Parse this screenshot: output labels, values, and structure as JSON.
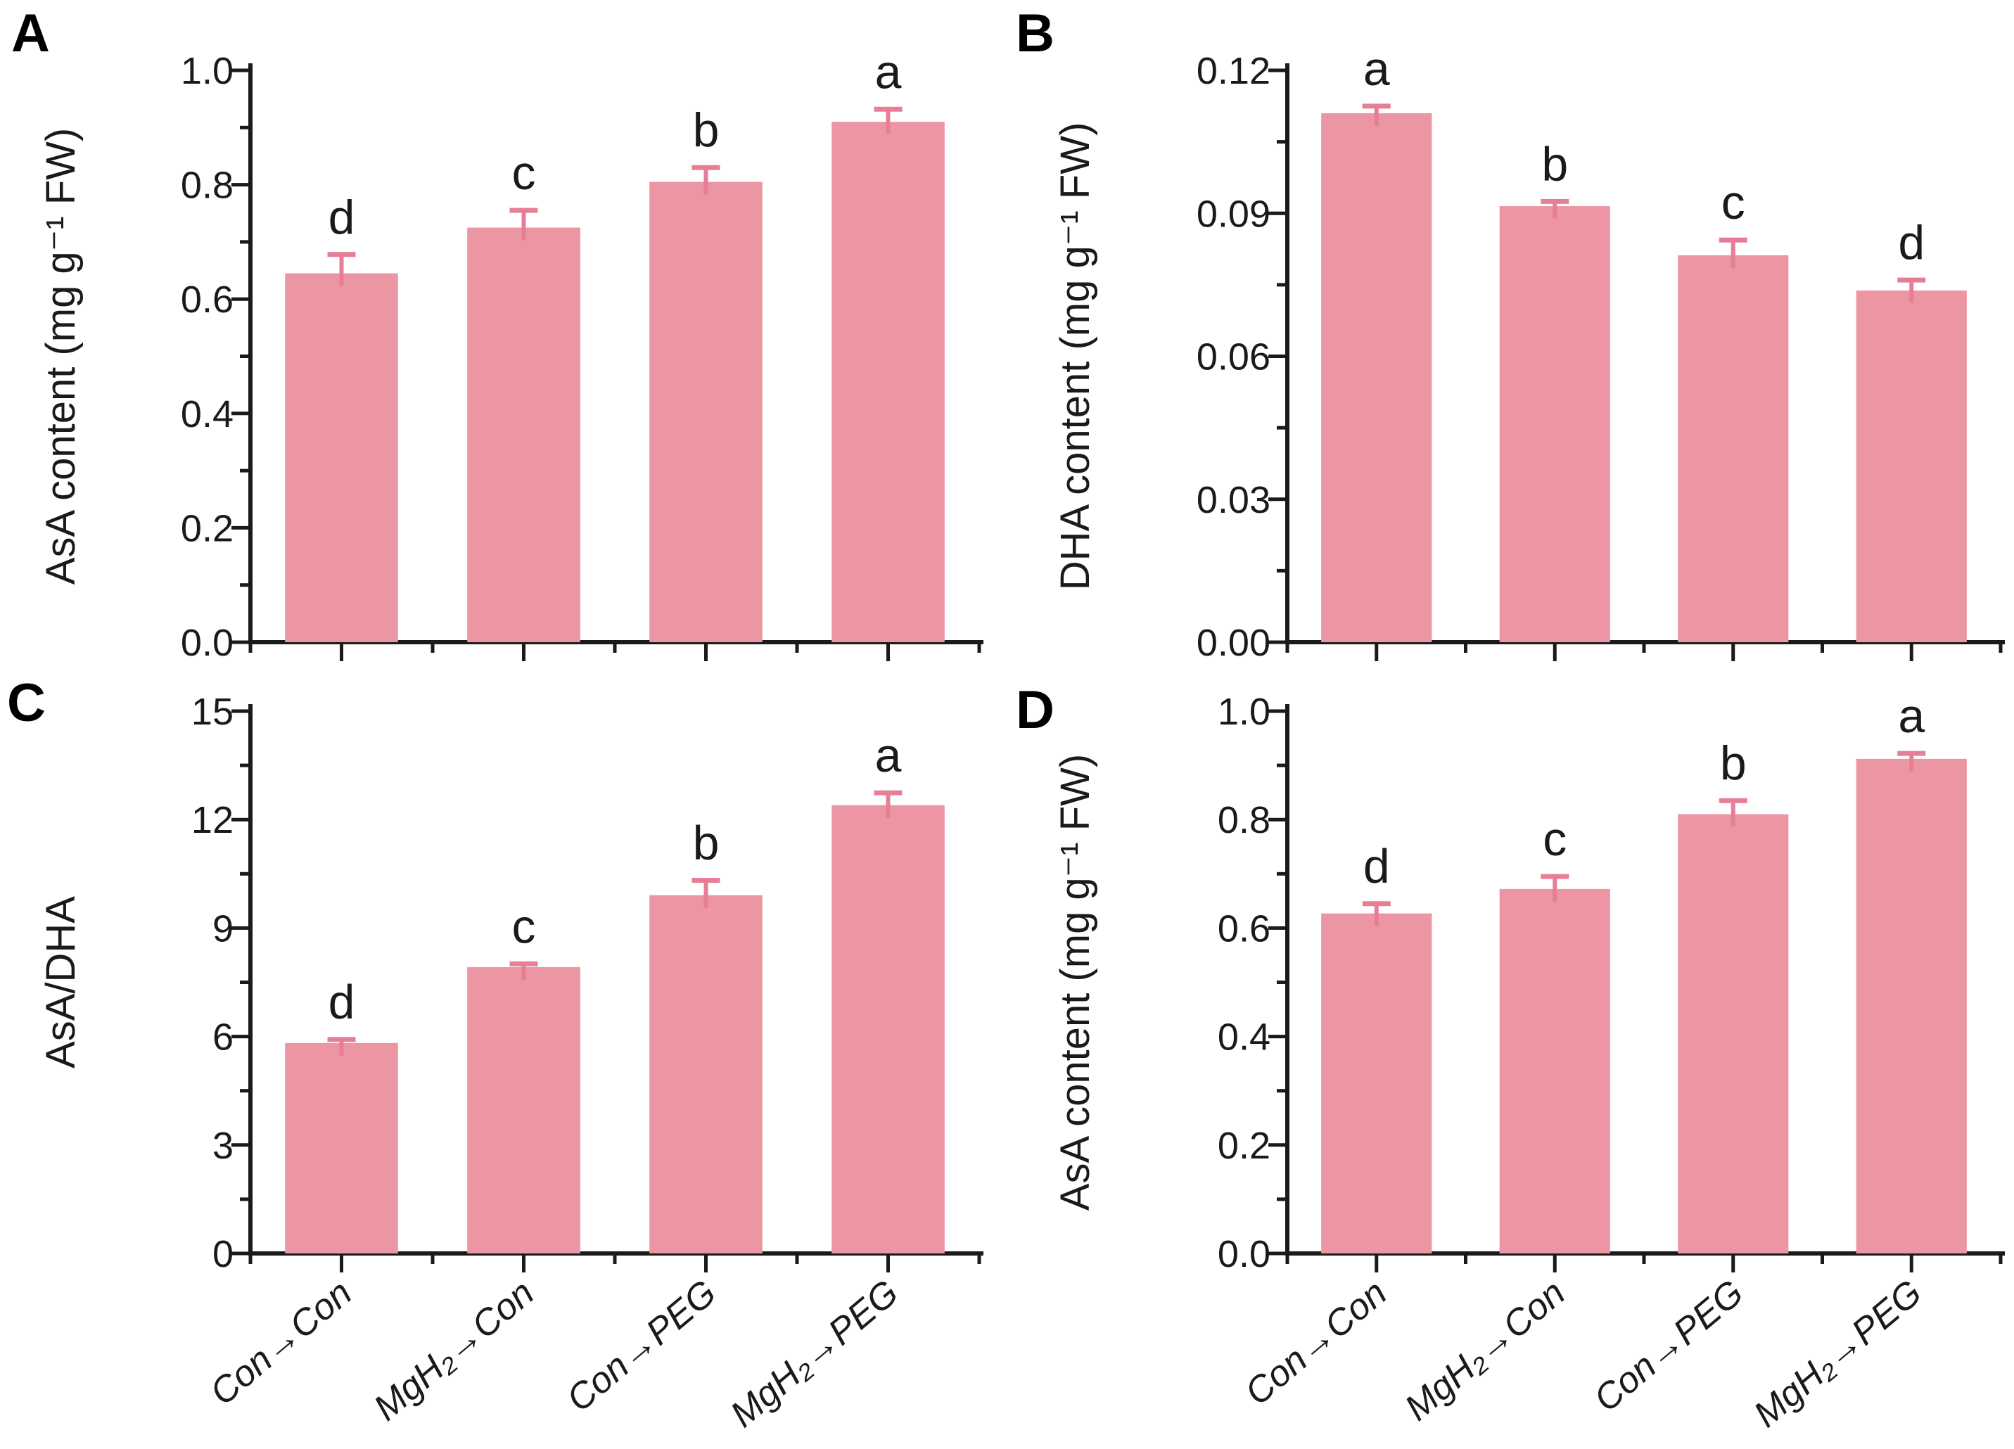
{
  "figure": {
    "description": "Four-panel bar chart figure showing ascorbate (AsA) and dehydroascorbate (DHA) measurements under MgH2 and PEG treatments",
    "background": "#ffffff"
  },
  "colors": {
    "bar_fill": "#ec96a3",
    "error_bar": "#e67f95",
    "axis": "#1a1a1a",
    "text": "#1a1a1a"
  },
  "categories": [
    "Con→Con",
    "MgH₂→Con",
    "Con→PEG",
    "MgH₂→PEG"
  ],
  "chart_data": [
    {
      "panel_letter": "A",
      "type": "bar",
      "title": "",
      "xlabel": "",
      "ylabel": "AsA content (mg g⁻¹ FW)",
      "categories": [
        "Con→Con",
        "MgH₂→Con",
        "Con→PEG",
        "MgH₂→PEG"
      ],
      "values": [
        0.645,
        0.725,
        0.805,
        0.91
      ],
      "errors": [
        0.033,
        0.03,
        0.025,
        0.022
      ],
      "sig_letters": [
        "d",
        "c",
        "b",
        "a"
      ],
      "ylim": [
        0,
        1.0
      ],
      "yticks": [
        0.0,
        0.2,
        0.4,
        0.6,
        0.8,
        1.0
      ],
      "ytick_labels": [
        "0.0",
        "0.2",
        "0.4",
        "0.6",
        "0.8",
        "1.0"
      ],
      "y_minor_step": 0.1,
      "grid": false,
      "legend": "none",
      "x_tick_labels_visible": false
    },
    {
      "panel_letter": "B",
      "type": "bar",
      "title": "",
      "xlabel": "",
      "ylabel": "DHA content (mg g⁻¹ FW)",
      "categories": [
        "Con→Con",
        "MgH₂→Con",
        "Con→PEG",
        "MgH₂→PEG"
      ],
      "values": [
        0.111,
        0.0915,
        0.0812,
        0.0738
      ],
      "errors": [
        0.0015,
        0.001,
        0.0032,
        0.0022
      ],
      "sig_letters": [
        "a",
        "b",
        "c",
        "d"
      ],
      "ylim": [
        0,
        0.12
      ],
      "yticks": [
        0.0,
        0.03,
        0.06,
        0.09,
        0.12
      ],
      "ytick_labels": [
        "0.00",
        "0.03",
        "0.06",
        "0.09",
        "0.12"
      ],
      "y_minor_step": 0.015,
      "grid": false,
      "legend": "none",
      "x_tick_labels_visible": false
    },
    {
      "panel_letter": "C",
      "type": "bar",
      "title": "",
      "xlabel": "",
      "ylabel": "AsA/DHA",
      "categories": [
        "Con→Con",
        "MgH₂→Con",
        "Con→PEG",
        "MgH₂→PEG"
      ],
      "values": [
        5.82,
        7.92,
        9.91,
        12.4
      ],
      "errors": [
        0.1,
        0.09,
        0.41,
        0.34
      ],
      "sig_letters": [
        "d",
        "c",
        "b",
        "a"
      ],
      "ylim": [
        0,
        15
      ],
      "yticks": [
        0,
        3,
        6,
        9,
        12,
        15
      ],
      "ytick_labels": [
        "0",
        "3",
        "6",
        "9",
        "12",
        "15"
      ],
      "y_minor_step": 1.5,
      "grid": false,
      "legend": "none",
      "x_tick_labels_visible": true
    },
    {
      "panel_letter": "D",
      "type": "bar",
      "title": "",
      "xlabel": "",
      "ylabel": "AsA content (mg g⁻¹ FW)",
      "categories": [
        "Con→Con",
        "MgH₂→Con",
        "Con→PEG",
        "MgH₂→PEG"
      ],
      "values": [
        0.627,
        0.672,
        0.81,
        0.912
      ],
      "errors": [
        0.018,
        0.023,
        0.025,
        0.01
      ],
      "sig_letters": [
        "d",
        "c",
        "b",
        "a"
      ],
      "ylim": [
        0,
        1.0
      ],
      "yticks": [
        0.0,
        0.2,
        0.4,
        0.6,
        0.8,
        1.0
      ],
      "ytick_labels": [
        "0.0",
        "0.2",
        "0.4",
        "0.6",
        "0.8",
        "1.0"
      ],
      "y_minor_step": 0.1,
      "grid": false,
      "legend": "none",
      "x_tick_labels_visible": true
    }
  ]
}
